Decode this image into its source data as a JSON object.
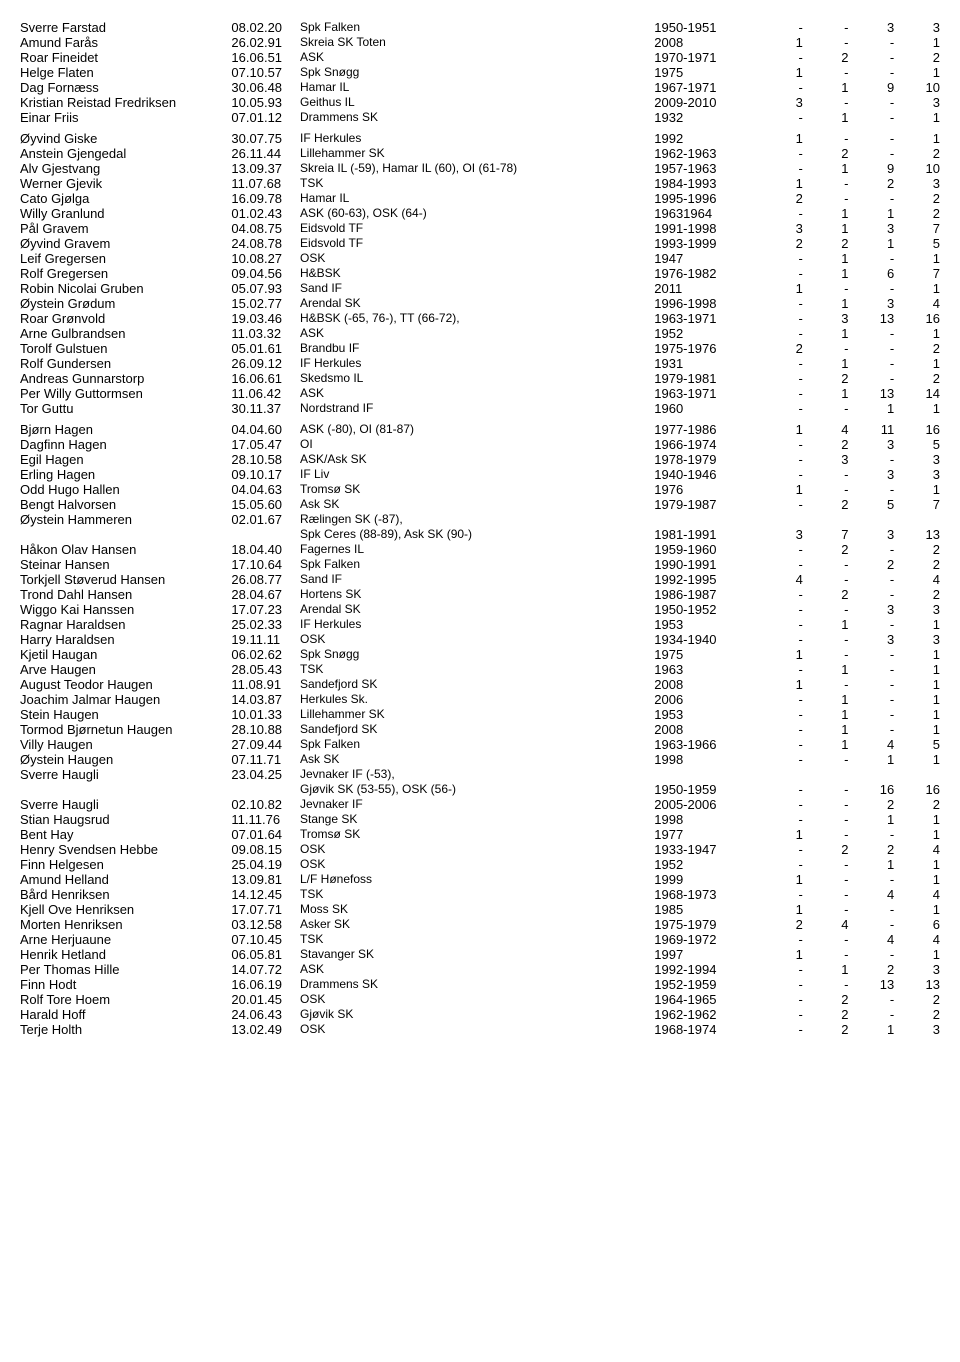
{
  "columns": [
    "name",
    "date",
    "club",
    "years",
    "c1",
    "c2",
    "c3",
    "c4"
  ],
  "groups": [
    [
      [
        "Sverre Farstad",
        "08.02.20",
        "Spk Falken",
        "1950-1951",
        "-",
        "-",
        "3",
        "3"
      ],
      [
        "Amund Farås",
        "26.02.91",
        "Skreia SK Toten",
        "2008",
        "1",
        "-",
        "-",
        "1"
      ],
      [
        "Roar Fineidet",
        "16.06.51",
        "ASK",
        "1970-1971",
        "-",
        "2",
        "-",
        "2"
      ],
      [
        "Helge Flaten",
        "07.10.57",
        "Spk Snøgg",
        "1975",
        "1",
        "-",
        "-",
        "1"
      ],
      [
        "Dag Fornæss",
        "30.06.48",
        "Hamar IL",
        "1967-1971",
        "-",
        "1",
        "9",
        "10"
      ],
      [
        "Kristian Reistad Fredriksen",
        "10.05.93",
        "Geithus IL",
        "2009-2010",
        "3",
        "-",
        "-",
        "3"
      ],
      [
        "Einar Friis",
        "07.01.12",
        "Drammens SK",
        "1932",
        "-",
        "1",
        "-",
        "1"
      ]
    ],
    [
      [
        "Øyvind Giske",
        "30.07.75",
        "IF Herkules",
        "1992",
        "1",
        "-",
        "-",
        "1"
      ],
      [
        "Anstein Gjengedal",
        "26.11.44",
        "Lillehammer SK",
        "1962-1963",
        "-",
        "2",
        "-",
        "2"
      ],
      [
        "Alv Gjestvang",
        "13.09.37",
        "Skreia IL (-59), Hamar IL (60), OI (61-78)",
        "1957-1963",
        "-",
        "1",
        "9",
        "10"
      ],
      [
        "Werner Gjevik",
        "11.07.68",
        "TSK",
        "1984-1993",
        "1",
        "-",
        "2",
        "3"
      ],
      [
        "Cato Gjølga",
        "16.09.78",
        "Hamar IL",
        "1995-1996",
        "2",
        "-",
        "-",
        "2"
      ],
      [
        "Willy Granlund",
        "01.02.43",
        "ASK (60-63), OSK (64-)",
        "19631964",
        "-",
        "1",
        "1",
        "2"
      ],
      [
        "Pål Gravem",
        "04.08.75",
        "Eidsvold TF",
        "1991-1998",
        "3",
        "1",
        "3",
        "7"
      ],
      [
        "Øyvind Gravem",
        "24.08.78",
        "Eidsvold TF",
        "1993-1999",
        "2",
        "2",
        "1",
        "5"
      ],
      [
        "Leif Gregersen",
        "10.08.27",
        "OSK",
        "1947",
        "-",
        "1",
        "-",
        "1"
      ],
      [
        "Rolf Gregersen",
        "09.04.56",
        "H&BSK",
        "1976-1982",
        "-",
        "1",
        "6",
        "7"
      ],
      [
        "Robin Nicolai Gruben",
        "05.07.93",
        "Sand IF",
        "2011",
        "1",
        "-",
        "-",
        "1"
      ],
      [
        "Øystein Grødum",
        "15.02.77",
        "Arendal SK",
        "1996-1998",
        "-",
        "1",
        "3",
        "4"
      ],
      [
        "Roar Grønvold",
        "19.03.46",
        "H&BSK (-65, 76-), TT (66-72),",
        "1963-1971",
        "-",
        "3",
        "13",
        "16"
      ],
      [
        "Arne Gulbrandsen",
        "11.03.32",
        "ASK",
        "1952",
        "-",
        "1",
        "-",
        "1"
      ],
      [
        "Torolf Gulstuen",
        "05.01.61",
        "Brandbu IF",
        "1975-1976",
        "2",
        "-",
        "-",
        "2"
      ],
      [
        "Rolf Gundersen",
        "26.09.12",
        "IF Herkules",
        "1931",
        "-",
        "1",
        "-",
        "1"
      ],
      [
        "Andreas Gunnarstorp",
        "16.06.61",
        "Skedsmo IL",
        "1979-1981",
        "-",
        "2",
        "-",
        "2"
      ],
      [
        "Per Willy Guttormsen",
        "11.06.42",
        "ASK",
        "1963-1971",
        "-",
        "1",
        "13",
        "14"
      ],
      [
        "Tor Guttu",
        "30.11.37",
        "Nordstrand IF",
        "1960",
        "-",
        "-",
        "1",
        "1"
      ]
    ],
    [
      [
        "Bjørn Hagen",
        "04.04.60",
        "ASK (-80), OI (81-87)",
        "1977-1986",
        "1",
        "4",
        "11",
        "16"
      ],
      [
        "Dagfinn Hagen",
        "17.05.47",
        "OI",
        "1966-1974",
        "-",
        "2",
        "3",
        "5"
      ],
      [
        "Egil Hagen",
        "28.10.58",
        "ASK/Ask SK",
        "1978-1979",
        "-",
        "3",
        "-",
        "3"
      ],
      [
        "Erling Hagen",
        "09.10.17",
        "IF Liv",
        "1940-1946",
        "-",
        "-",
        "3",
        "3"
      ],
      [
        "Odd Hugo Hallen",
        "04.04.63",
        "Tromsø SK",
        "1976",
        "1",
        "-",
        "-",
        "1"
      ],
      [
        "Bengt Halvorsen",
        "15.05.60",
        "Ask SK",
        "1979-1987",
        "-",
        "2",
        "5",
        "7"
      ],
      [
        "Øystein Hammeren",
        "02.01.67",
        "Rælingen SK (-87),",
        "",
        "",
        "",
        "",
        ""
      ],
      [
        "",
        "",
        "Spk Ceres (88-89), Ask SK (90-)",
        "1981-1991",
        "3",
        "7",
        "3",
        "13"
      ],
      [
        "Håkon Olav Hansen",
        "18.04.40",
        "Fagernes IL",
        "1959-1960",
        "-",
        "2",
        "-",
        "2"
      ],
      [
        "Steinar Hansen",
        "17.10.64",
        "Spk Falken",
        "1990-1991",
        "-",
        "-",
        "2",
        "2"
      ],
      [
        "Torkjell Støverud Hansen",
        "26.08.77",
        "Sand IF",
        "1992-1995",
        "4",
        "-",
        "-",
        "4"
      ],
      [
        "Trond Dahl Hansen",
        "28.04.67",
        "Hortens SK",
        "1986-1987",
        "-",
        "2",
        "-",
        "2"
      ],
      [
        "Wiggo Kai Hanssen",
        "17.07.23",
        "Arendal SK",
        "1950-1952",
        "-",
        "-",
        "3",
        "3"
      ],
      [
        "Ragnar Haraldsen",
        "25.02.33",
        "IF Herkules",
        "1953",
        "-",
        "1",
        "-",
        "1"
      ],
      [
        "Harry Haraldsen",
        "19.11.11",
        "OSK",
        "1934-1940",
        "-",
        "-",
        "3",
        "3"
      ],
      [
        "Kjetil Haugan",
        "06.02.62",
        "Spk Snøgg",
        "1975",
        "1",
        "-",
        "-",
        "1"
      ],
      [
        "Arve Haugen",
        "28.05.43",
        "TSK",
        "1963",
        "-",
        "1",
        "-",
        "1"
      ],
      [
        "August Teodor Haugen",
        "11.08.91",
        "Sandefjord SK",
        "2008",
        "1",
        "-",
        "-",
        "1"
      ],
      [
        "Joachim Jalmar Haugen",
        "14.03.87",
        "Herkules Sk.",
        "2006",
        "-",
        "1",
        "-",
        "1"
      ],
      [
        "Stein Haugen",
        "10.01.33",
        "Lillehammer SK",
        "1953",
        "-",
        "1",
        "-",
        "1"
      ],
      [
        "Tormod Bjørnetun Haugen",
        "28.10.88",
        "Sandefjord SK",
        "2008",
        "-",
        "1",
        "-",
        "1"
      ],
      [
        "Villy Haugen",
        "27.09.44",
        "Spk Falken",
        "1963-1966",
        "-",
        "1",
        "4",
        "5"
      ],
      [
        "Øystein Haugen",
        "07.11.71",
        "Ask SK",
        "1998",
        "-",
        "-",
        "1",
        "1"
      ],
      [
        "Sverre Haugli",
        "23.04.25",
        "Jevnaker IF (-53),",
        "",
        "",
        "",
        "",
        ""
      ],
      [
        "",
        "",
        "Gjøvik SK (53-55), OSK (56-)",
        "1950-1959",
        "-",
        "-",
        "16",
        "16"
      ],
      [
        "Sverre Haugli",
        "02.10.82",
        "Jevnaker IF",
        "2005-2006",
        "-",
        "-",
        "2",
        "2"
      ],
      [
        "Stian Haugsrud",
        "11.11.76",
        "Stange SK",
        "1998",
        "-",
        "-",
        "1",
        "1"
      ],
      [
        "Bent Hay",
        "07.01.64",
        "Tromsø SK",
        "1977",
        "1",
        "-",
        "-",
        "1"
      ],
      [
        "Henry Svendsen Hebbe",
        "09.08.15",
        "OSK",
        "1933-1947",
        "-",
        "2",
        "2",
        "4"
      ],
      [
        "Finn Helgesen",
        "25.04.19",
        "OSK",
        "1952",
        "-",
        "-",
        "1",
        "1"
      ],
      [
        "Amund Helland",
        "13.09.81",
        "L/F Hønefoss",
        "1999",
        "1",
        "-",
        "-",
        "1"
      ],
      [
        "Bård Henriksen",
        "14.12.45",
        "TSK",
        "1968-1973",
        "-",
        "-",
        "4",
        "4"
      ],
      [
        "Kjell Ove Henriksen",
        "17.07.71",
        "Moss SK",
        "1985",
        "1",
        "-",
        "-",
        "1"
      ],
      [
        "Morten Henriksen",
        "03.12.58",
        "Asker SK",
        "1975-1979",
        "2",
        "4",
        "-",
        "6"
      ],
      [
        "Arne Herjuaune",
        "07.10.45",
        "TSK",
        "1969-1972",
        "-",
        "-",
        "4",
        "4"
      ],
      [
        "Henrik Hetland",
        "06.05.81",
        "Stavanger SK",
        "1997",
        "1",
        "-",
        "-",
        "1"
      ],
      [
        "Per Thomas Hille",
        "14.07.72",
        "ASK",
        "1992-1994",
        "-",
        "1",
        "2",
        "3"
      ],
      [
        "Finn Hodt",
        "16.06.19",
        "Drammens SK",
        "1952-1959",
        "-",
        "-",
        "13",
        "13"
      ],
      [
        "Rolf Tore Hoem",
        "20.01.45",
        "OSK",
        "1964-1965",
        "-",
        "2",
        "-",
        "2"
      ],
      [
        "Harald Hoff",
        "24.06.43",
        "Gjøvik SK",
        "1962-1962",
        "-",
        "2",
        "-",
        "2"
      ],
      [
        "Terje Holth",
        "13.02.49",
        "OSK",
        "1968-1974",
        "-",
        "2",
        "1",
        "3"
      ]
    ]
  ]
}
